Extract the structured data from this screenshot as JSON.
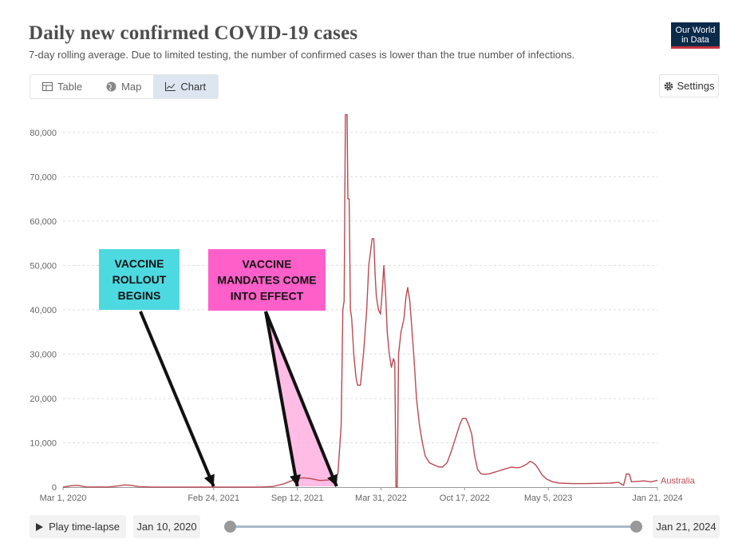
{
  "header": {
    "title": "Daily new confirmed COVID-19 cases",
    "subtitle": "7-day rolling average. Due to limited testing, the number of confirmed cases is lower than the true number of infections.",
    "logo_line1": "Our World",
    "logo_line2": "in Data"
  },
  "tabs": [
    {
      "label": "Table",
      "icon": "table-icon",
      "active": false
    },
    {
      "label": "Map",
      "icon": "globe-icon",
      "active": false
    },
    {
      "label": "Chart",
      "icon": "line-chart-icon",
      "active": true
    }
  ],
  "settings_label": "Settings",
  "controls": {
    "play_label": "Play time-lapse",
    "start_date": "Jan 10, 2020",
    "end_date": "Jan 21, 2024"
  },
  "annotations": [
    {
      "text_lines": [
        "VACCINE",
        "ROLLOUT",
        "BEGINS"
      ],
      "fill": "#4dd9e0",
      "arrow_target_date": "2021-02-24"
    },
    {
      "text_lines": [
        "VACCINE",
        "MANDATES COME",
        "INTO EFFECT"
      ],
      "fill": "#ff5fc8",
      "highlight_fill": "#ffb0e0",
      "arrow_target_dates": [
        "2021-09-12",
        "2021-12-15"
      ]
    }
  ],
  "colors": {
    "series": "#b84a52",
    "grid": "#dddddd",
    "axis_text": "#666666"
  },
  "chart_data": {
    "type": "line",
    "title": "Daily new confirmed COVID-19 cases",
    "xlabel": "",
    "ylabel": "",
    "x_range": [
      "2020-03-01",
      "2024-01-21"
    ],
    "ylim": [
      0,
      85000
    ],
    "y_ticks": [
      0,
      10000,
      20000,
      30000,
      40000,
      50000,
      60000,
      70000,
      80000
    ],
    "y_tick_labels": [
      "0",
      "10,000",
      "20,000",
      "30,000",
      "40,000",
      "50,000",
      "60,000",
      "70,000",
      "80,000"
    ],
    "x_ticks": [
      "2020-03-01",
      "2021-02-24",
      "2021-09-12",
      "2022-03-31",
      "2022-10-17",
      "2023-05-05",
      "2024-01-21"
    ],
    "x_tick_labels": [
      "Mar 1, 2020",
      "Feb 24, 2021",
      "Sep 12, 2021",
      "Mar 31, 2022",
      "Oct 17, 2022",
      "May 5, 2023",
      "Jan 21, 2024"
    ],
    "grid": true,
    "series": [
      {
        "name": "Australia",
        "points": [
          [
            "2020-03-01",
            0
          ],
          [
            "2020-03-20",
            300
          ],
          [
            "2020-04-05",
            400
          ],
          [
            "2020-04-25",
            50
          ],
          [
            "2020-06-15",
            20
          ],
          [
            "2020-07-10",
            250
          ],
          [
            "2020-07-25",
            480
          ],
          [
            "2020-08-10",
            420
          ],
          [
            "2020-08-30",
            100
          ],
          [
            "2020-10-01",
            20
          ],
          [
            "2021-06-15",
            20
          ],
          [
            "2021-07-15",
            150
          ],
          [
            "2021-08-10",
            700
          ],
          [
            "2021-08-25",
            1300
          ],
          [
            "2021-09-10",
            1800
          ],
          [
            "2021-09-25",
            2100
          ],
          [
            "2021-10-15",
            1900
          ],
          [
            "2021-11-05",
            1500
          ],
          [
            "2021-11-25",
            1600
          ],
          [
            "2021-12-08",
            1900
          ],
          [
            "2021-12-18",
            3000
          ],
          [
            "2021-12-26",
            14000
          ],
          [
            "2021-12-30",
            40000
          ],
          [
            "2022-01-02",
            42000
          ],
          [
            "2022-01-05",
            84000
          ],
          [
            "2022-01-09",
            84000
          ],
          [
            "2022-01-11",
            65000
          ],
          [
            "2022-01-14",
            65000
          ],
          [
            "2022-01-17",
            40000
          ],
          [
            "2022-01-20",
            38000
          ],
          [
            "2022-01-25",
            30000
          ],
          [
            "2022-01-30",
            25000
          ],
          [
            "2022-02-03",
            23000
          ],
          [
            "2022-02-10",
            23000
          ],
          [
            "2022-02-14",
            27000
          ],
          [
            "2022-02-18",
            31000
          ],
          [
            "2022-02-25",
            40000
          ],
          [
            "2022-03-02",
            50000
          ],
          [
            "2022-03-06",
            53000
          ],
          [
            "2022-03-10",
            56000
          ],
          [
            "2022-03-14",
            56000
          ],
          [
            "2022-03-17",
            48000
          ],
          [
            "2022-03-20",
            43000
          ],
          [
            "2022-03-25",
            40000
          ],
          [
            "2022-03-30",
            39000
          ],
          [
            "2022-04-03",
            44000
          ],
          [
            "2022-04-07",
            50000
          ],
          [
            "2022-04-11",
            44000
          ],
          [
            "2022-04-15",
            35000
          ],
          [
            "2022-04-20",
            30000
          ],
          [
            "2022-04-25",
            27000
          ],
          [
            "2022-04-30",
            29000
          ],
          [
            "2022-05-03",
            28000
          ],
          [
            "2022-05-06",
            0
          ],
          [
            "2022-05-09",
            0
          ],
          [
            "2022-05-12",
            30000
          ],
          [
            "2022-05-18",
            35000
          ],
          [
            "2022-05-25",
            38000
          ],
          [
            "2022-05-30",
            43000
          ],
          [
            "2022-06-03",
            45000
          ],
          [
            "2022-06-08",
            42000
          ],
          [
            "2022-06-12",
            37000
          ],
          [
            "2022-06-18",
            29000
          ],
          [
            "2022-06-24",
            20000
          ],
          [
            "2022-07-01",
            14000
          ],
          [
            "2022-07-08",
            10000
          ],
          [
            "2022-07-15",
            7000
          ],
          [
            "2022-07-25",
            5500
          ],
          [
            "2022-08-05",
            5000
          ],
          [
            "2022-08-15",
            4600
          ],
          [
            "2022-08-25",
            4500
          ],
          [
            "2022-09-05",
            5500
          ],
          [
            "2022-09-15",
            8000
          ],
          [
            "2022-09-25",
            11000
          ],
          [
            "2022-10-05",
            14000
          ],
          [
            "2022-10-12",
            15500
          ],
          [
            "2022-10-20",
            15500
          ],
          [
            "2022-10-27",
            14000
          ],
          [
            "2022-11-03",
            12000
          ],
          [
            "2022-11-10",
            7000
          ],
          [
            "2022-11-17",
            4000
          ],
          [
            "2022-11-25",
            3000
          ],
          [
            "2022-12-05",
            2900
          ],
          [
            "2022-12-15",
            3000
          ],
          [
            "2022-12-25",
            3300
          ],
          [
            "2023-01-05",
            3600
          ],
          [
            "2023-01-15",
            3900
          ],
          [
            "2023-01-25",
            4200
          ],
          [
            "2023-02-05",
            4500
          ],
          [
            "2023-02-15",
            4400
          ],
          [
            "2023-02-25",
            4400
          ],
          [
            "2023-03-05",
            4700
          ],
          [
            "2023-03-15",
            5200
          ],
          [
            "2023-03-22",
            5800
          ],
          [
            "2023-03-28",
            5600
          ],
          [
            "2023-04-05",
            5000
          ],
          [
            "2023-04-12",
            4000
          ],
          [
            "2023-04-20",
            2800
          ],
          [
            "2023-05-01",
            1800
          ],
          [
            "2023-05-15",
            1200
          ],
          [
            "2023-06-01",
            900
          ],
          [
            "2023-07-01",
            800
          ],
          [
            "2023-08-01",
            800
          ],
          [
            "2023-09-01",
            850
          ],
          [
            "2023-10-01",
            900
          ],
          [
            "2023-10-20",
            1100
          ],
          [
            "2023-11-01",
            400
          ],
          [
            "2023-11-08",
            3000
          ],
          [
            "2023-11-15",
            2900
          ],
          [
            "2023-11-20",
            1200
          ],
          [
            "2023-12-05",
            1300
          ],
          [
            "2023-12-20",
            1400
          ],
          [
            "2024-01-05",
            1200
          ],
          [
            "2024-01-21",
            1500
          ]
        ]
      }
    ]
  }
}
